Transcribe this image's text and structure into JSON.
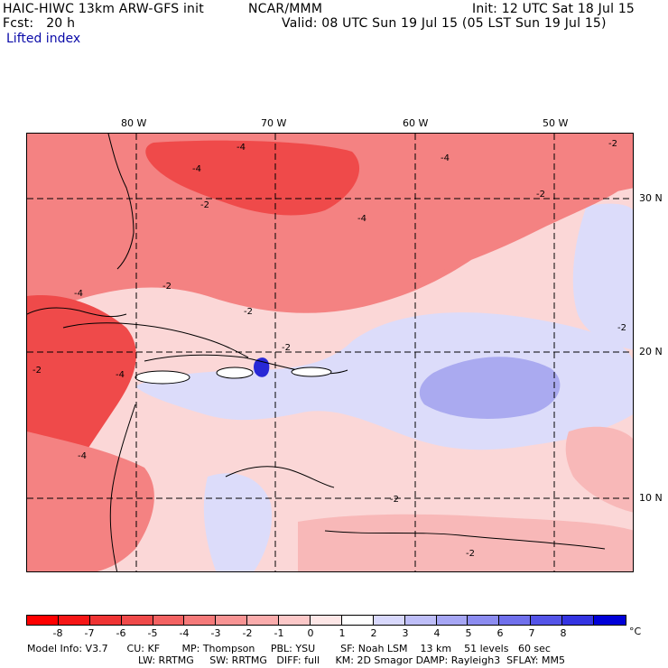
{
  "header": {
    "model_title": "HAIC-HIWC 13km ARW-GFS init",
    "org": "NCAR/MMM",
    "init": "Init: 12 UTC Sat 18 Jul 15",
    "forecast": "Fcst:   20 h",
    "valid": "Valid: 08 UTC Sun 19 Jul 15 (05 LST Sun 19 Jul 15)",
    "variable": "Lifted index"
  },
  "map": {
    "lon_labels": [
      "80 W",
      "70 W",
      "60 W",
      "50 W"
    ],
    "lat_labels": [
      "30 N",
      "20 N",
      "10 N"
    ],
    "contour_labels": [
      "-4",
      "-4",
      "-4",
      "-2",
      "-2",
      "-2",
      "-4",
      "-2",
      "-4",
      "-2",
      "-2",
      "-4",
      "-2",
      "-2",
      "-2",
      "-4",
      "-2"
    ],
    "colors": {
      "strong_neg": "#ef4a4a",
      "mid_neg": "#f48282",
      "weak_neg": "#f8b8b8",
      "near_zero": "#fde6e6",
      "weak_pos": "#dcdcfa",
      "mid_pos": "#aaaaf0",
      "strong_pos": "#2828d6",
      "outline": "#000000"
    }
  },
  "colorbar": {
    "labels": [
      "-8",
      "-7",
      "-6",
      "-5",
      "-4",
      "-3",
      "-2",
      "-1",
      "0",
      "1",
      "2",
      "3",
      "4",
      "5",
      "6",
      "7",
      "8"
    ],
    "unit": "°C",
    "colors": [
      "#ff0000",
      "#f61616",
      "#ef3434",
      "#ef4a4a",
      "#f36262",
      "#f57a7a",
      "#f89494",
      "#faacac",
      "#fcc8c8",
      "#fde6e6",
      "#ffffff",
      "#d8d8fc",
      "#bebef8",
      "#a6a6f4",
      "#8c8cf0",
      "#7070ec",
      "#5454e8",
      "#3434e2",
      "#0000d8"
    ]
  },
  "footer": {
    "line1": "Model Info: V3.7      CU: KF       MP: Thompson     PBL: YSU        SF: Noah LSM    13 km    51 levels   60 sec",
    "line2": "LW: RRTMG     SW: RRTMG   DIFF: full     KM: 2D Smagor DAMP: Rayleigh3  SFLAY: MM5"
  }
}
